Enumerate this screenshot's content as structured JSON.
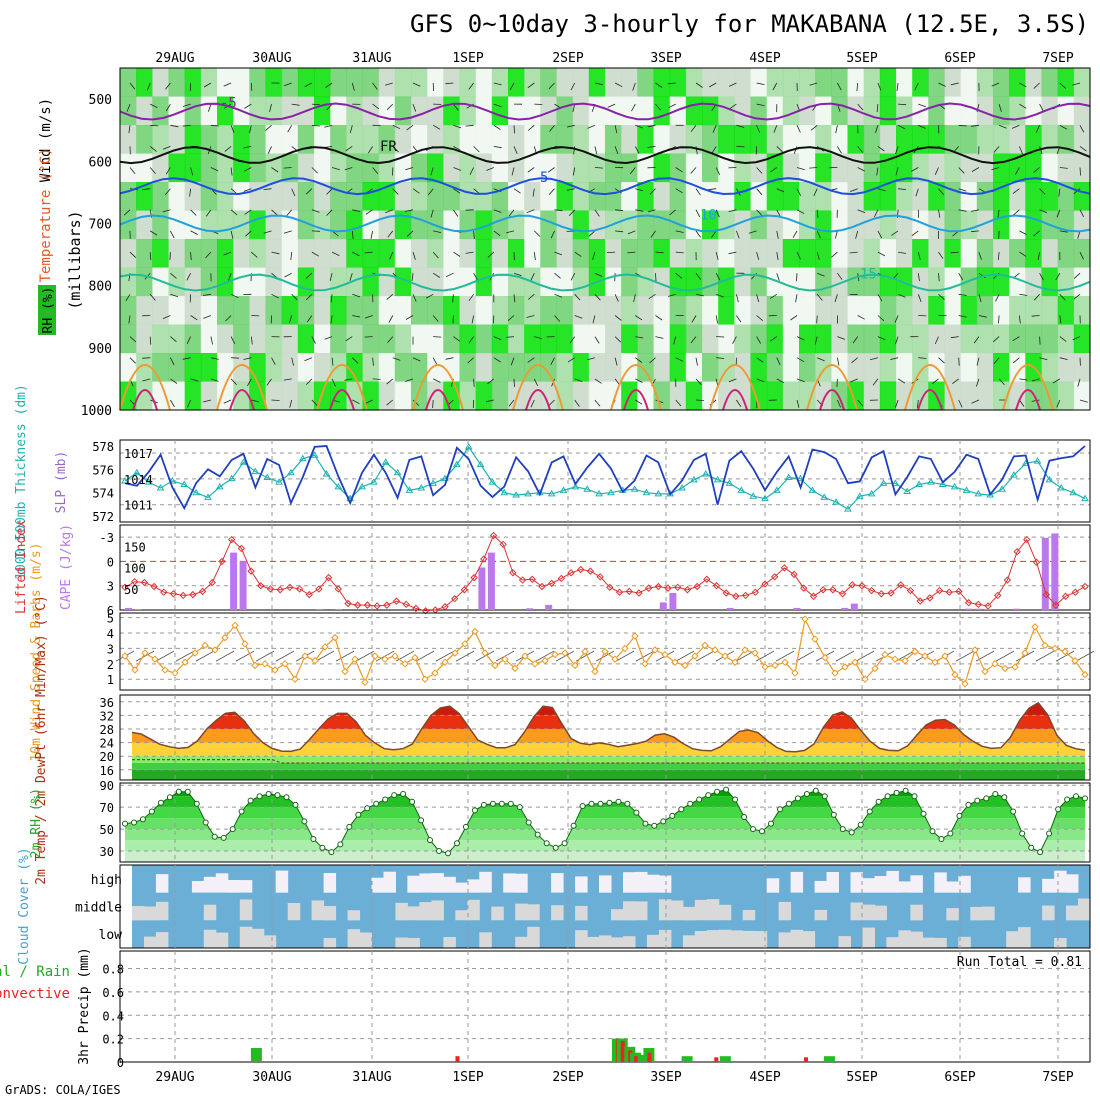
{
  "page": {
    "title": "GFS 0~10day 3-hourly for MAKABANA (12.5E, 3.5S)",
    "footer": "GrADS: COLA/IGES",
    "run_total_label": "Run Total = 0.81"
  },
  "colors": {
    "cloud_bg": "#6baed6",
    "cloud_fill": "#d9d9d9",
    "rh_dark": "#00aa00",
    "rh_light": "#66dd66",
    "slp_line": "#1f3fbf",
    "thickness_line": "#20b2b2",
    "lifted_index": "#dd3333",
    "cape_bar": "#bb77ee",
    "wind_line": "#ee9922",
    "precip_total": "#22bb22",
    "precip_conv": "#ee2222"
  },
  "chart_data": {
    "type": "meteogram",
    "date_labels": [
      "29AUG",
      "30AUG",
      "31AUG",
      "1SEP",
      "2SEP",
      "3SEP",
      "4SEP",
      "5SEP",
      "6SEP",
      "7SEP"
    ],
    "panels": [
      {
        "id": "upper_air",
        "ylabel_parts": [
          "Wind (m/s)",
          "Temperature (°C)",
          "RH (%)",
          "(millibars)"
        ],
        "y_ticks": [
          "500",
          "600",
          "700",
          "800",
          "900",
          "1000"
        ],
        "isotherms": [
          {
            "label": "-5",
            "level_mb": 520
          },
          {
            "label": "FR",
            "level_mb": 590
          },
          {
            "label": "5",
            "level_mb": 640
          },
          {
            "label": "10",
            "level_mb": 700
          },
          {
            "label": "15",
            "level_mb": 795
          }
        ]
      },
      {
        "id": "slp_thickness",
        "ylabel": "SLP (mb)",
        "ylabel2": "1000-500mb Thickness (dm)",
        "left_ticks": [
          "578",
          "576",
          "574",
          "572"
        ],
        "right_ticks": [
          "1017",
          "1014",
          "1011"
        ],
        "series": [
          {
            "name": "SLP (mb)",
            "values": [
              1013.5,
              1013.2,
              1014.8,
              1016.8,
              1013.0,
              1010.6,
              1013.5,
              1015.1,
              1014.3,
              1016.2,
              1016.9,
              1013.0,
              1016.3,
              1015.6,
              1011.2,
              1014.2,
              1017.7,
              1017.8,
              1014.3,
              1011.2,
              1014.7,
              1016.8,
              1014.7,
              1011.8,
              1016.2,
              1016.6,
              1012.1,
              1013.3,
              1017.6,
              1016.3,
              1013.2,
              1011.9,
              1013.1,
              1016.5,
              1014.9,
              1012.2,
              1015.9,
              1016.6,
              1013.4,
              1015.3,
              1016.9,
              1015.2,
              1012.5,
              1013.8,
              1016.7,
              1015.9,
              1012.2,
              1013.8,
              1016.2,
              1016.9,
              1011.0,
              1016.1,
              1017.2,
              1015.2,
              1012.7,
              1014.8,
              1016.6,
              1013.0,
              1017.4,
              1017.1,
              1016.3,
              1013.5,
              1013.7,
              1016.5,
              1017.2,
              1012.2,
              1014.2,
              1016.6,
              1016.3,
              1013.6,
              1014.8,
              1016.8,
              1016.3,
              1012.2,
              1013.9,
              1016.6,
              1016.7,
              1011.6,
              1016.1,
              1016.4,
              1016.6,
              1017.8
            ]
          },
          {
            "name": "1000-500mb Thickness (dm)",
            "values": [
              575.0,
              575.7,
              574.9,
              574.4,
              575.0,
              574.7,
              574.0,
              573.6,
              574.5,
              575.2,
              576.6,
              575.8,
              575.3,
              574.9,
              575.7,
              576.9,
              577.2,
              575.6,
              574.5,
              573.5,
              574.5,
              574.9,
              576.6,
              575.7,
              574.2,
              574.4,
              574.8,
              575.2,
              576.4,
              577.9,
              576.4,
              574.9,
              574.0,
              573.8,
              573.9,
              574.0,
              573.9,
              574.2,
              574.5,
              574.3,
              573.9,
              574.0,
              574.2,
              574.3,
              574.0,
              573.9,
              573.9,
              574.4,
              575.1,
              575.6,
              575.1,
              574.8,
              574.2,
              573.7,
              573.5,
              574.2,
              575.3,
              575.2,
              574.2,
              573.6,
              573.2,
              572.6,
              573.7,
              573.9,
              574.8,
              574.8,
              574.1,
              574.7,
              574.9,
              574.7,
              574.5,
              574.2,
              573.9,
              573.8,
              574.3,
              575.5,
              576.5,
              576.7,
              575.1,
              574.4,
              574.0,
              573.5
            ]
          }
        ]
      },
      {
        "id": "cape_li",
        "ylabel": "CAPE (J/kg)",
        "ylabel2": "Lifted Index",
        "left_ticks": [
          "-3",
          "0",
          "3",
          "6"
        ],
        "right_ticks": [
          "150",
          "100",
          "50"
        ],
        "lifted_index": [
          3.2,
          2.5,
          2.6,
          3.1,
          3.8,
          4.0,
          4.2,
          4.1,
          3.7,
          2.6,
          0.0,
          -2.7,
          -1.6,
          1.2,
          3.0,
          3.4,
          3.5,
          3.2,
          3.4,
          4.1,
          3.4,
          2.0,
          3.4,
          5.2,
          5.4,
          5.4,
          5.5,
          5.4,
          4.9,
          5.3,
          5.8,
          6.1,
          6.0,
          5.6,
          4.6,
          3.5,
          2.0,
          -0.3,
          -3.2,
          -2.1,
          1.4,
          2.3,
          2.2,
          3.1,
          2.7,
          2.1,
          1.4,
          1.0,
          1.2,
          1.9,
          3.2,
          3.8,
          3.7,
          3.9,
          3.3,
          3.1,
          3.3,
          3.2,
          3.5,
          3.1,
          2.2,
          3.0,
          3.9,
          4.3,
          4.2,
          3.8,
          2.8,
          1.9,
          0.8,
          1.6,
          3.3,
          4.3,
          3.5,
          3.5,
          4.0,
          2.9,
          3.0,
          3.6,
          4.0,
          3.9,
          2.9,
          3.6,
          4.9,
          4.5,
          3.6,
          3.8,
          3.7,
          5.1,
          5.3,
          5.5,
          4.2,
          2.3,
          -1.2,
          -2.7,
          0.1,
          4.1,
          5.4,
          4.3,
          3.8,
          3.1
        ],
        "cape_bars": [
          {
            "x": 0,
            "value": 5
          },
          {
            "x": 1,
            "value": 2
          },
          {
            "x": 11,
            "value": 135
          },
          {
            "x": 12,
            "value": 115
          },
          {
            "x": 20,
            "value": 2
          },
          {
            "x": 22,
            "value": 2
          },
          {
            "x": 37,
            "value": 100
          },
          {
            "x": 38,
            "value": 135
          },
          {
            "x": 42,
            "value": 4
          },
          {
            "x": 44,
            "value": 12
          },
          {
            "x": 56,
            "value": 18
          },
          {
            "x": 57,
            "value": 40
          },
          {
            "x": 63,
            "value": 5
          },
          {
            "x": 70,
            "value": 5
          },
          {
            "x": 75,
            "value": 5
          },
          {
            "x": 76,
            "value": 15
          },
          {
            "x": 88,
            "value": 3
          },
          {
            "x": 89,
            "value": 3
          },
          {
            "x": 90,
            "value": 2
          },
          {
            "x": 93,
            "value": 3
          },
          {
            "x": 96,
            "value": 170
          },
          {
            "x": 97,
            "value": 180
          }
        ]
      },
      {
        "id": "wind10m",
        "ylabel": "10m Wind Speed & Barbs (m/s)",
        "y_ticks": [
          "5",
          "4",
          "3",
          "2",
          "1"
        ],
        "series": [
          {
            "name": "10m Wind Speed",
            "values": [
              2.5,
              1.6,
              2.7,
              2.3,
              1.6,
              1.4,
              2.1,
              2.7,
              3.2,
              2.9,
              3.7,
              4.5,
              3.3,
              1.9,
              2.0,
              1.6,
              2.0,
              1.0,
              2.5,
              2.2,
              3.1,
              3.7,
              1.5,
              2.3,
              0.8,
              2.5,
              2.3,
              2.5,
              2.0,
              2.4,
              1.0,
              1.4,
              2.1,
              2.7,
              3.3,
              4.1,
              2.7,
              1.9,
              2.3,
              1.7,
              2.5,
              2.0,
              2.2,
              2.6,
              2.7,
              1.9,
              2.8,
              1.5,
              2.8,
              2.3,
              3.0,
              3.8,
              2.0,
              2.9,
              2.6,
              2.1,
              1.9,
              2.5,
              3.2,
              2.9,
              2.5,
              2.1,
              2.9,
              2.7,
              1.8,
              1.9,
              2.1,
              1.4,
              4.9,
              3.6,
              2.4,
              1.4,
              1.8,
              2.1,
              1.0,
              1.7,
              2.6,
              2.3,
              2.2,
              2.8,
              2.5,
              2.1,
              2.5,
              1.3,
              0.7,
              2.9,
              1.5,
              2.0,
              1.7,
              1.8,
              2.7,
              4.4,
              3.2,
              3.0,
              2.8,
              2.2,
              1.3
            ]
          }
        ]
      },
      {
        "id": "temp2m",
        "ylabel": "2m Temp / 2m DewPt (6hr Min/Max) (°C)",
        "y_ticks": [
          "36",
          "32",
          "28",
          "24",
          "20",
          "16"
        ],
        "series": [
          {
            "name": "2m Temp",
            "values": [
              27,
              26.5,
              25,
              23.5,
              22.8,
              22.3,
              22.6,
              24.5,
              28,
              30.5,
              32.6,
              32.9,
              30.4,
              26.7,
              24,
              22.3,
              21.5,
              21.4,
              22.1,
              24.9,
              28.1,
              31,
              32.6,
              32.6,
              30.1,
              26.1,
              23.9,
              22.2,
              21.9,
              22.2,
              23.6,
              28,
              32,
              34.2,
              34.7,
              32.6,
              28.7,
              24.8,
              23.5,
              22.5,
              22.5,
              23.4,
              27.1,
              31.6,
              34.7,
              34.3,
              29.6,
              25.2,
              23.8,
              23.4,
              23.9,
              23.5,
              22.8,
              23.2,
              23.7,
              24.4,
              26.2,
              26.6,
              25.6,
              23.7,
              22.2,
              21.7,
              21.6,
              22.8,
              25.1,
              27.3,
              27.7,
              26.9,
              24.6,
              22.6,
              21.4,
              21.3,
              21.7,
              23.6,
              28.5,
              32.1,
              33,
              31.2,
              27.6,
              24.4,
              22.3,
              21.7,
              21.6,
              23,
              26.2,
              29.2,
              30.6,
              30.8,
              29.2,
              26.4,
              24.4,
              22.9,
              22.3,
              22.5,
              25.5,
              30.5,
              34.1,
              35.7,
              32.2,
              26.1,
              23.2,
              22.2,
              21.8
            ]
          },
          {
            "name": "2m DewPt",
            "values": [
              19,
              19,
              19,
              19,
              19,
              19,
              19,
              19,
              19,
              19,
              19,
              19,
              19,
              19,
              19,
              19,
              18,
              18,
              18,
              18,
              18,
              18,
              18,
              18,
              18,
              18,
              18,
              18,
              18,
              18,
              18,
              18,
              18,
              18,
              18,
              18,
              18,
              18,
              18,
              18,
              18,
              18,
              18,
              18,
              18,
              18,
              18,
              18,
              18,
              18,
              18,
              18,
              18,
              18,
              18,
              18,
              18,
              18,
              18,
              18,
              18,
              18,
              18,
              18,
              18,
              18,
              18,
              18,
              18,
              18,
              18,
              18,
              18,
              18,
              18,
              18,
              18,
              18,
              18,
              18,
              18,
              18,
              18,
              18,
              18,
              18,
              18,
              18,
              18,
              18,
              18,
              18,
              18,
              18,
              18,
              18,
              18,
              18,
              18,
              18,
              18,
              18,
              18
            ]
          }
        ]
      },
      {
        "id": "rh2m",
        "ylabel": "2m RH (%)",
        "y_ticks": [
          "90",
          "70",
          "50",
          "30"
        ],
        "series": [
          {
            "name": "2m RH",
            "values": [
              55,
              56,
              59,
              66,
              74,
              79,
              84,
              84,
              73,
              56,
              43,
              42,
              50,
              66,
              76,
              80,
              82,
              81,
              79,
              72,
              57,
              41,
              33,
              29,
              36,
              52,
              63,
              69,
              73,
              77,
              81,
              82,
              75,
              58,
              40,
              30,
              28,
              37,
              52,
              67,
              72,
              73,
              73,
              73,
              70,
              56,
              45,
              37,
              33,
              37,
              53,
              71,
              73,
              73,
              74,
              75,
              73,
              65,
              55,
              53,
              57,
              62,
              68,
              73,
              77,
              81,
              84,
              86,
              77,
              61,
              50,
              48,
              55,
              68,
              73,
              78,
              82,
              85,
              80,
              63,
              50,
              47,
              54,
              66,
              75,
              80,
              83,
              85,
              80,
              64,
              48,
              41,
              46,
              62,
              72,
              76,
              78,
              82,
              79,
              66,
              46,
              33,
              29,
              46,
              68,
              77,
              80,
              78
            ]
          }
        ]
      },
      {
        "id": "cloud",
        "ylabel": "Cloud Cover (%)",
        "row_labels": [
          "high",
          "middle",
          "low"
        ]
      },
      {
        "id": "precip",
        "ylabel": "3hr Precip (mm)",
        "ylabel2": "Total / Rain / Convective",
        "y_ticks": [
          "0.8",
          "0.6",
          "0.4",
          "0.2",
          "0"
        ],
        "precip_bars": [
          {
            "x": 13.5,
            "total": 0.12,
            "conv": 0
          },
          {
            "x": 34.5,
            "total": 0,
            "conv": 0.05
          },
          {
            "x": 51.3,
            "total": 0.2,
            "conv": 0.2
          },
          {
            "x": 51.8,
            "total": 0.2,
            "conv": 0.18
          },
          {
            "x": 52.6,
            "total": 0.13,
            "conv": 0.1
          },
          {
            "x": 53.2,
            "total": 0.08,
            "conv": 0.05
          },
          {
            "x": 54.0,
            "total": 0.06,
            "conv": 0
          },
          {
            "x": 54.6,
            "total": 0.12,
            "conv": 0.08
          },
          {
            "x": 58.6,
            "total": 0.05,
            "conv": 0
          },
          {
            "x": 61.6,
            "total": 0,
            "conv": 0.04
          },
          {
            "x": 62.6,
            "total": 0.05,
            "conv": 0
          },
          {
            "x": 71.0,
            "total": 0,
            "conv": 0.04
          },
          {
            "x": 73.5,
            "total": 0.05,
            "conv": 0
          }
        ]
      }
    ]
  }
}
